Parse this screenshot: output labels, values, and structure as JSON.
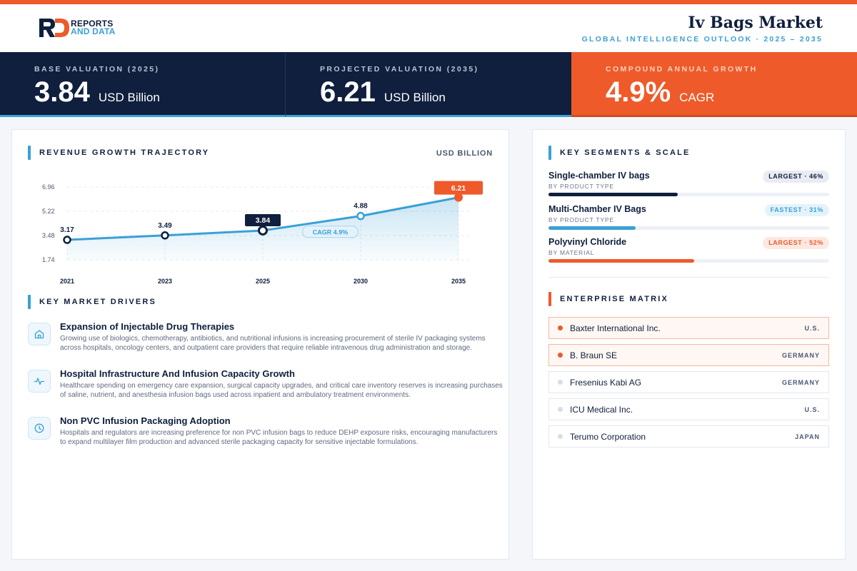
{
  "brand": {
    "line1": "REPORTS",
    "line2": "AND DATA"
  },
  "header": {
    "title": "Iv Bags Market",
    "subtitle": "GLOBAL INTELLIGENCE OUTLOOK · 2025 – 2035"
  },
  "stats": [
    {
      "label": "BASE VALUATION (2025)",
      "value": "3.84",
      "unit": "USD Billion"
    },
    {
      "label": "PROJECTED VALUATION (2035)",
      "value": "6.21",
      "unit": "USD Billion"
    },
    {
      "label": "COMPOUND ANNUAL GROWTH",
      "value": "4.9%",
      "unit": "CAGR"
    }
  ],
  "trajectory": {
    "heading": "REVENUE GROWTH TRAJECTORY",
    "unit": "USD BILLION"
  },
  "chart_data": {
    "type": "line",
    "categories": [
      "2021",
      "2023",
      "2025",
      "2030",
      "2035"
    ],
    "values": [
      3.17,
      3.49,
      3.84,
      4.88,
      6.21
    ],
    "y_ticks": [
      "6.96",
      "5.22",
      "3.48",
      "1.74"
    ],
    "ylim": [
      1.74,
      6.96
    ],
    "annotation": "CAGR 4.9%",
    "highlight": {
      "base_index": 2,
      "end_index": 4
    },
    "colors": {
      "line": "#3aa0d6",
      "dark": "#0f1f3d",
      "accent": "#ee5a2a"
    },
    "grid": true
  },
  "drivers": {
    "heading": "KEY MARKET DRIVERS",
    "items": [
      {
        "icon": "home-icon",
        "title": "Expansion of Injectable Drug Therapies",
        "desc": "Growing use of biologics, chemotherapy, antibiotics, and nutritional infusions is increasing procurement of sterile IV packaging systems across hospitals, oncology centers, and outpatient care providers that require reliable intravenous drug administration and storage."
      },
      {
        "icon": "activity-icon",
        "title": "Hospital Infrastructure And Infusion Capacity Growth",
        "desc": "Healthcare spending on emergency care expansion, surgical capacity upgrades, and critical care inventory reserves is increasing purchases of saline, nutrient, and anesthesia infusion bags used across inpatient and ambulatory treatment environments."
      },
      {
        "icon": "clock-icon",
        "title": "Non PVC Infusion Packaging Adoption",
        "desc": "Hospitals and regulators are increasing preference for non PVC infusion bags to reduce DEHP exposure risks, encouraging manufacturers to expand multilayer film production and advanced sterile packaging capacity for sensitive injectable formulations."
      }
    ]
  },
  "segments": {
    "heading": "KEY SEGMENTS & SCALE",
    "items": [
      {
        "name": "Single-chamber IV bags",
        "sub": "BY PRODUCT TYPE",
        "badge": "LARGEST · 46%",
        "share": 0.46,
        "color": "#0f1f3d"
      },
      {
        "name": "Multi-Chamber IV Bags",
        "sub": "BY PRODUCT TYPE",
        "badge": "FASTEST · 31%",
        "share": 0.31,
        "color": "#3aa0d6"
      },
      {
        "name": "Polyvinyl Chloride",
        "sub": "BY MATERIAL",
        "badge": "LARGEST · 52%",
        "share": 0.52,
        "color": "#ee5a2a"
      }
    ]
  },
  "enterprise": {
    "heading": "ENTERPRISE MATRIX",
    "items": [
      {
        "name": "Baxter International Inc.",
        "country": "U.S.",
        "highlight": true
      },
      {
        "name": "B. Braun SE",
        "country": "GERMANY",
        "highlight": true
      },
      {
        "name": "Fresenius Kabi AG",
        "country": "GERMANY",
        "highlight": false
      },
      {
        "name": "ICU Medical Inc.",
        "country": "U.S.",
        "highlight": false
      },
      {
        "name": "Terumo Corporation",
        "country": "JAPAN",
        "highlight": false
      }
    ]
  }
}
